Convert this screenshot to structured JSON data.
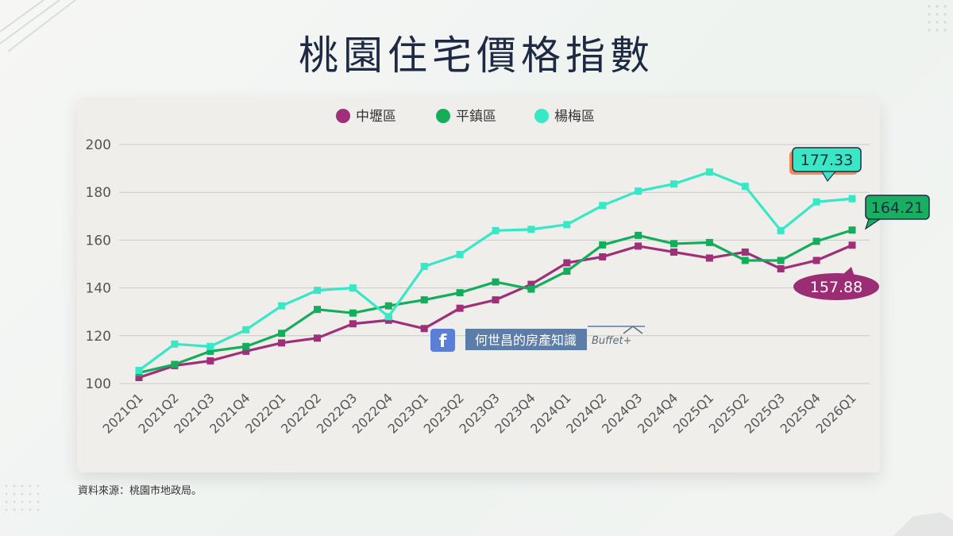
{
  "title": "桃園住宅價格指數",
  "source_note": "資料來源：桃園市地政局。",
  "watermark": {
    "icon": "facebook-icon",
    "text": "何世昌的房產知識",
    "brand": "Buffet+"
  },
  "chart_data": {
    "type": "line",
    "title": "桃園住宅價格指數",
    "xlabel": "",
    "ylabel": "",
    "ylim": [
      100,
      200
    ],
    "yticks": [
      100,
      120,
      140,
      160,
      180,
      200
    ],
    "grid": true,
    "legend_position": "top-center",
    "categories": [
      "2021Q1",
      "2021Q2",
      "2021Q3",
      "2021Q4",
      "2022Q1",
      "2022Q2",
      "2022Q3",
      "2022Q4",
      "2023Q1",
      "2023Q2",
      "2023Q3",
      "2023Q4",
      "2024Q1",
      "2024Q2",
      "2024Q3",
      "2024Q4",
      "2025Q1",
      "2025Q2",
      "2025Q3",
      "2025Q4",
      "2026Q1"
    ],
    "series": [
      {
        "name": "中壢區",
        "color": "#a02f7a",
        "label_bg": "#9a2d73",
        "end_label": "157.88",
        "values": [
          102.5,
          107.5,
          109.5,
          113.5,
          117,
          119,
          125,
          126.5,
          123,
          131.5,
          135,
          141.5,
          150.5,
          153,
          157.5,
          155,
          152.5,
          155,
          148,
          151.5,
          157.88
        ]
      },
      {
        "name": "平鎮區",
        "color": "#14ad5c",
        "label_bg": "#18b060",
        "end_label": "164.21",
        "values": [
          104.5,
          108,
          113.5,
          115.5,
          121,
          131,
          129.5,
          132.5,
          135,
          138,
          142.5,
          139.5,
          147,
          158,
          162,
          158.5,
          159,
          151.5,
          151.5,
          159.5,
          164.21
        ]
      },
      {
        "name": "楊梅區",
        "color": "#38e7c5",
        "label_bg": "#3be6c5",
        "end_label": "177.33",
        "values": [
          105.5,
          116.5,
          115.5,
          122.5,
          132.5,
          139,
          140,
          128,
          149,
          154,
          164,
          164.5,
          166.5,
          174.5,
          180.5,
          183.5,
          188.5,
          182.5,
          164,
          176,
          177.33
        ]
      }
    ]
  }
}
